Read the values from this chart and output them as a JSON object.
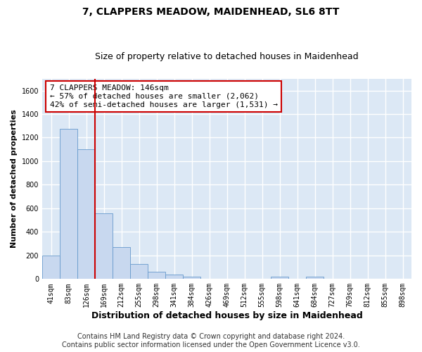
{
  "title": "7, CLAPPERS MEADOW, MAIDENHEAD, SL6 8TT",
  "subtitle": "Size of property relative to detached houses in Maidenhead",
  "xlabel": "Distribution of detached houses by size in Maidenhead",
  "ylabel": "Number of detached properties",
  "footer_line1": "Contains HM Land Registry data © Crown copyright and database right 2024.",
  "footer_line2": "Contains public sector information licensed under the Open Government Licence v3.0.",
  "bin_labels": [
    "41sqm",
    "83sqm",
    "126sqm",
    "169sqm",
    "212sqm",
    "255sqm",
    "298sqm",
    "341sqm",
    "384sqm",
    "426sqm",
    "469sqm",
    "512sqm",
    "555sqm",
    "598sqm",
    "641sqm",
    "684sqm",
    "727sqm",
    "769sqm",
    "812sqm",
    "855sqm",
    "898sqm"
  ],
  "bar_values": [
    200,
    1275,
    1100,
    560,
    270,
    125,
    60,
    35,
    20,
    0,
    0,
    0,
    0,
    18,
    0,
    20,
    0,
    0,
    0,
    0,
    0
  ],
  "bar_color": "#c8d8ef",
  "bar_edge_color": "#6699cc",
  "vline_x_idx": 2,
  "vline_color": "#cc0000",
  "annotation_text": "7 CLAPPERS MEADOW: 146sqm\n← 57% of detached houses are smaller (2,062)\n42% of semi-detached houses are larger (1,531) →",
  "annotation_box_facecolor": "#ffffff",
  "annotation_box_edgecolor": "#cc0000",
  "ylim": [
    0,
    1700
  ],
  "yticks": [
    0,
    200,
    400,
    600,
    800,
    1000,
    1200,
    1400,
    1600
  ],
  "fig_bg_color": "#ffffff",
  "plot_bg_color": "#dce8f5",
  "grid_color": "#ffffff",
  "title_fontsize": 10,
  "subtitle_fontsize": 9,
  "xlabel_fontsize": 9,
  "ylabel_fontsize": 8,
  "tick_fontsize": 7,
  "annot_fontsize": 8,
  "footer_fontsize": 7
}
